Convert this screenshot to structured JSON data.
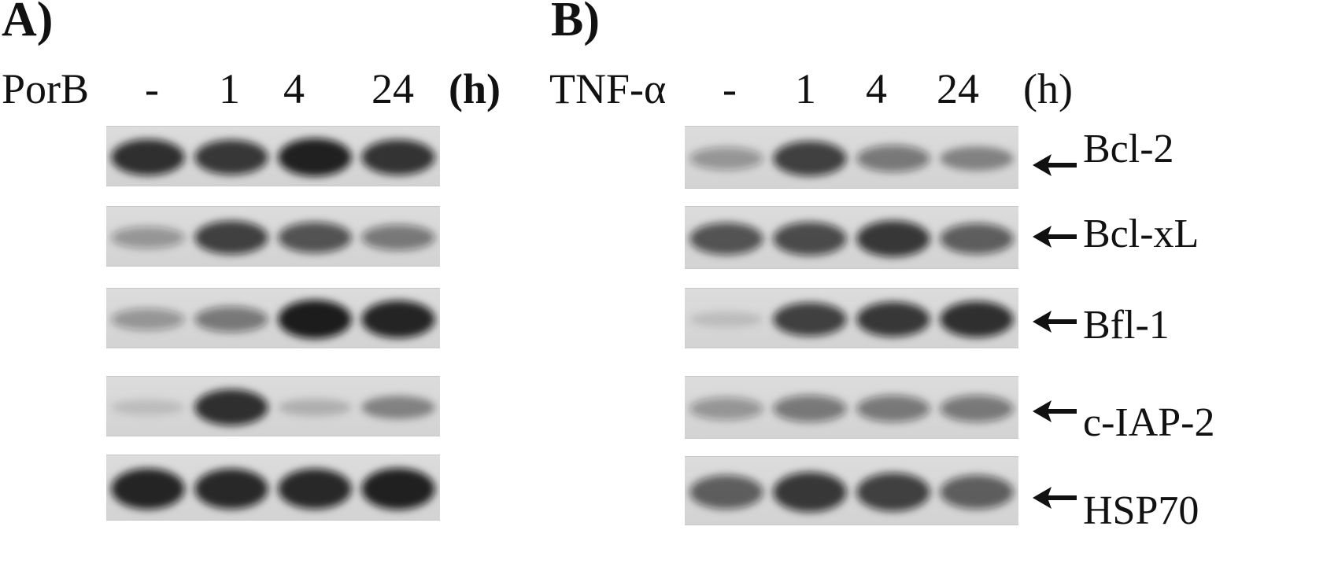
{
  "panelA": {
    "letter": "A)",
    "treatment": "PorB",
    "lanes": [
      "-",
      "1",
      "4",
      "24"
    ],
    "unit": "(h)",
    "blots": [
      {
        "intensities": [
          0.85,
          0.8,
          0.92,
          0.82
        ]
      },
      {
        "intensities": [
          0.3,
          0.75,
          0.65,
          0.45
        ]
      },
      {
        "intensities": [
          0.3,
          0.45,
          0.95,
          0.9
        ]
      },
      {
        "intensities": [
          0.05,
          0.85,
          0.12,
          0.35
        ]
      },
      {
        "intensities": [
          0.9,
          0.88,
          0.88,
          0.92
        ]
      }
    ]
  },
  "panelB": {
    "letter": "B)",
    "treatment": "TNF-α",
    "lanes": [
      "-",
      "1",
      "4",
      "24"
    ],
    "unit": "(h)",
    "blots": [
      {
        "protein": "Bcl-2",
        "intensities": [
          0.3,
          0.75,
          0.45,
          0.35
        ]
      },
      {
        "protein": "Bcl-xL",
        "intensities": [
          0.65,
          0.7,
          0.8,
          0.6
        ]
      },
      {
        "protein": "Bfl-1",
        "intensities": [
          0.05,
          0.75,
          0.8,
          0.85
        ]
      },
      {
        "protein": "c-IAP-2",
        "intensities": [
          0.3,
          0.45,
          0.45,
          0.45
        ]
      },
      {
        "protein": "HSP70",
        "intensities": [
          0.6,
          0.8,
          0.75,
          0.6
        ]
      }
    ]
  }
}
